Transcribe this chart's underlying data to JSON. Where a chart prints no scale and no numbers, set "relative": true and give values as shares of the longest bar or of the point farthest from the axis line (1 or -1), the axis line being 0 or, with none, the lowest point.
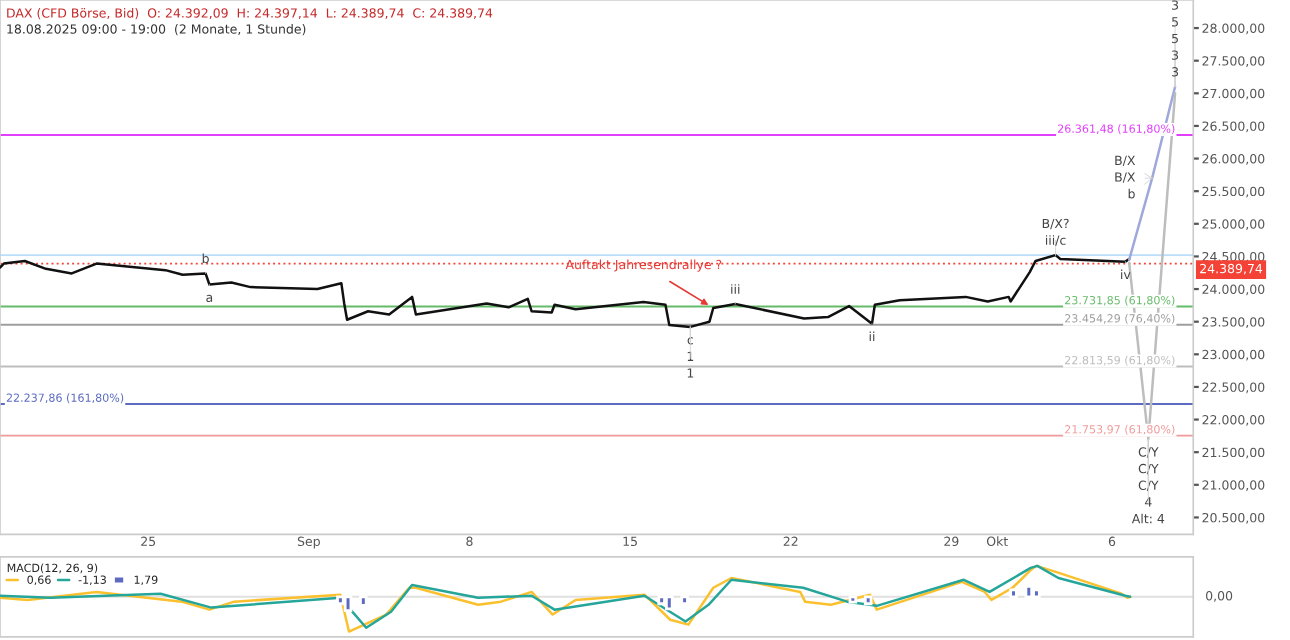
{
  "chart_data": [
    {
      "type": "line",
      "annotations": [
        "DAX (CFD Börse, Bid)  O: 24.392,09  H: 24.397,14  L: 24.389,74  C: 24.389,74",
        "18.08.2025 09:00 - 19:00  (2 Monate, 1 Stunde)",
        {
          "text": "Auftakt Jahresendrallye ?",
          "x": "2025-09-18T15:00",
          "y": 23710
        },
        {
          "text": "b",
          "x": "2025-08-27T12:00",
          "y": 24240
        },
        {
          "text": "a",
          "x": "2025-08-27T16:00",
          "y": 24070
        },
        {
          "text": "c",
          "x": "2025-09-17T15:00",
          "y": 23420
        },
        {
          "text": "1",
          "x": "2025-09-17T15:00",
          "y": 23420
        },
        {
          "text": "1",
          "x": "2025-09-17T15:00",
          "y": 23420
        },
        {
          "text": "iii",
          "x": "2025-09-19T14:00",
          "y": 23770
        },
        {
          "text": "ii",
          "x": "2025-09-25T13:00",
          "y": 23470
        },
        {
          "text": "B/X?",
          "x": "2025-10-03T13:00",
          "y": 24520
        },
        {
          "text": "iii/c",
          "x": "2025-10-03T13:00",
          "y": 24520
        },
        {
          "text": "iv",
          "x": "2025-10-06T14:00",
          "y": 24420
        },
        {
          "text": "B/X",
          "x": "2025-10-07T18:00",
          "y": 25700
        },
        {
          "text": "B/X",
          "x": "2025-10-07T18:00",
          "y": 25700
        },
        {
          "text": "b",
          "x": "2025-10-07T18:00",
          "y": 25700
        },
        {
          "text": "C/Y",
          "x": "2025-10-07T14:00",
          "y": 21700
        },
        {
          "text": "C/Y",
          "x": "2025-10-07T14:00",
          "y": 21700
        },
        {
          "text": "C/Y",
          "x": "2025-10-07T14:00",
          "y": 21700
        },
        {
          "text": "4",
          "x": "2025-10-07T14:00",
          "y": 21700
        },
        {
          "text": "Alt: 4",
          "x": "2025-10-07T14:00",
          "y": 21700
        },
        {
          "text": "3",
          "x": "2025-10-08T18:00",
          "y": 27100
        },
        {
          "text": "5",
          "x": "2025-10-08T18:00",
          "y": 27100
        },
        {
          "text": "5",
          "x": "2025-10-08T18:00",
          "y": 27100
        },
        {
          "text": "3",
          "x": "2025-10-08T18:00",
          "y": 27100
        },
        {
          "text": "3",
          "x": "2025-10-08T18:00",
          "y": 27100
        }
      ],
      "series": [
        {
          "color": "#111111",
          "x": [
            "2025-08-18T13:00",
            "2025-08-18T17:00",
            "2025-08-19T15:00",
            "2025-08-20T13:00",
            "2025-08-21T16:00",
            "2025-08-22T18:00",
            "2025-08-25T18:00",
            "2025-08-26T12:00",
            "2025-08-27T12:00",
            "2025-08-27T16:00",
            "2025-08-28T15:00",
            "2025-08-29T11:00",
            "2025-09-01T09:00",
            "2025-09-02T10:00",
            "2025-09-02T13:00",
            "2025-09-02T16:00",
            "2025-09-03T14:00",
            "2025-09-04T12:00",
            "2025-09-05T12:00",
            "2025-09-05T16:00",
            "2025-09-08T18:00",
            "2025-09-09T17:00",
            "2025-09-10T13:00",
            "2025-09-10T17:00",
            "2025-09-11T14:00",
            "2025-09-11T17:00",
            "2025-09-12T15:00",
            "2025-09-15T14:00",
            "2025-09-16T13:00",
            "2025-09-16T17:00",
            "2025-09-17T15:00",
            "2025-09-18T11:00",
            "2025-09-18T15:00",
            "2025-09-19T14:00",
            "2025-09-22T14:00",
            "2025-09-23T15:00",
            "2025-09-24T13:00",
            "2025-09-25T13:00",
            "2025-09-25T16:00",
            "2025-09-26T18:00",
            "2025-09-29T15:00",
            "2025-09-30T14:00",
            "2025-10-01T12:00",
            "2025-10-01T14:00",
            "2025-10-02T10:00",
            "2025-10-02T16:00",
            "2025-10-03T13:00",
            "2025-10-03T18:00",
            "2025-10-06T14:00",
            "2025-10-06T18:00"
          ],
          "values": [
            24330,
            24390,
            24430,
            24310,
            24240,
            24390,
            24290,
            24220,
            24240,
            24070,
            24100,
            24030,
            24000,
            24090,
            23780,
            23530,
            23660,
            23610,
            23880,
            23610,
            23780,
            23720,
            23850,
            23660,
            23640,
            23760,
            23690,
            23800,
            23760,
            23450,
            23420,
            23500,
            23710,
            23770,
            23550,
            23570,
            23740,
            23470,
            23760,
            23830,
            23880,
            23810,
            23880,
            23810,
            24260,
            24430,
            24520,
            24460,
            24420,
            24460
          ]
        },
        {
          "color": "#9fa8da",
          "x": [
            "2025-10-06T18:00",
            "2025-10-07T18:00",
            "2025-10-08T18:00"
          ],
          "values": [
            24450,
            25700,
            27100
          ]
        },
        {
          "color": "#bdbdbd",
          "x": [
            "2025-10-06T18:00",
            "2025-10-07T14:00",
            "2025-10-08T18:00"
          ],
          "values": [
            24400,
            21700,
            27000
          ]
        }
      ],
      "xlim": [
        "2025-08-18T13:00",
        "2025-10-09T13:00"
      ],
      "tick_labels": "y",
      "ylim": [
        20240,
        28430
      ],
      "yticks": [
        {
          "value": 20500,
          "label": "20.500,00"
        },
        {
          "value": 21000,
          "label": "21.000,00"
        },
        {
          "value": 21500,
          "label": "21.500,00"
        },
        {
          "value": 22000,
          "label": "22.000,00"
        },
        {
          "value": 22500,
          "label": "22.500,00"
        },
        {
          "value": 23000,
          "label": "23.000,00"
        },
        {
          "value": 23500,
          "label": "23.500,00"
        },
        {
          "value": 24000,
          "label": "24.000,00"
        },
        {
          "value": 24500,
          "label": "24.500,00"
        },
        {
          "value": 25000,
          "label": "25.000,00"
        },
        {
          "value": 25500,
          "label": "25.500,00"
        },
        {
          "value": 26000,
          "label": "26.000,00"
        },
        {
          "value": 26500,
          "label": "26.500,00"
        },
        {
          "value": 27000,
          "label": "27.000,00"
        },
        {
          "value": 27500,
          "label": "27.500,00"
        },
        {
          "value": 28000,
          "label": "28.000,00"
        }
      ],
      "ref_lines": [
        {
          "axis": "y",
          "value": 26361.48,
          "label": "26.361,48 (161,80%)",
          "color": "#e040fb"
        },
        {
          "axis": "y",
          "value": 24520,
          "label": null,
          "color": "#bbdefb"
        },
        {
          "axis": "y",
          "value": 24389.74,
          "label": "24.389,74",
          "color": "#f44336",
          "line_style": "dotted"
        },
        {
          "axis": "y",
          "value": 23731.85,
          "label": "23.731,85 (61,80%)",
          "color": "#66bb6a"
        },
        {
          "axis": "y",
          "value": 23454.29,
          "label": "23.454,29 (76,40%)",
          "color": "#9e9e9e"
        },
        {
          "axis": "y",
          "value": 22813.59,
          "label": "22.813,59 (61,80%)",
          "color": "#bdbdbd"
        },
        {
          "axis": "y",
          "value": 22237.86,
          "label": "22.237,86 (161,80%)",
          "color": "#5c6bc0"
        },
        {
          "axis": "y",
          "value": 21753.97,
          "label": "21.753,97 (61,80%)",
          "color": "#ef9a9a"
        }
      ]
    },
    {
      "type": "line",
      "relative": true,
      "legend_title": "MACD(12, 26, 9)",
      "legend": "top left",
      "tick_labels": "x",
      "xlim": [
        "2025-08-18T13:00",
        "2025-10-09T13:00"
      ],
      "xticks": [
        {
          "value": "2025-08-25",
          "label": "25"
        },
        {
          "value": "2025-09-01",
          "label": "Sep"
        },
        {
          "value": "2025-09-08",
          "label": "8"
        },
        {
          "value": "2025-09-15",
          "label": "15"
        },
        {
          "value": "2025-09-22",
          "label": "22"
        },
        {
          "value": "2025-09-29",
          "label": "29"
        },
        {
          "value": "2025-10-01",
          "label": "Okt"
        },
        {
          "value": "2025-10-06",
          "label": "6"
        }
      ],
      "ref_lines": [
        {
          "axis": "y",
          "value": 0,
          "label": "0,00",
          "color": "#e0e0e0"
        }
      ],
      "series": [
        {
          "name": "0,66",
          "color": "#fbc02d",
          "x": [
            "2025-08-18T13:00",
            "2025-08-19T18:00",
            "2025-08-22T18:00",
            "2025-08-26T11:00",
            "2025-08-27T16:00",
            "2025-08-28T18:00",
            "2025-09-02T09:00",
            "2025-09-02T18:00",
            "2025-09-04T09:00",
            "2025-09-05T09:00",
            "2025-09-05T16:00",
            "2025-09-08T09:00",
            "2025-09-09T09:00",
            "2025-09-10T17:00",
            "2025-09-11T15:00",
            "2025-09-12T15:00",
            "2025-09-15T15:00",
            "2025-09-16T18:00",
            "2025-09-17T13:00",
            "2025-09-18T15:00",
            "2025-09-19T10:00",
            "2025-09-22T10:00",
            "2025-09-22T15:00",
            "2025-09-23T18:00",
            "2025-09-25T11:00",
            "2025-09-25T18:00",
            "2025-09-29T11:00",
            "2025-09-30T11:00",
            "2025-09-30T18:00",
            "2025-10-01T16:00",
            "2025-10-02T11:00",
            "2025-10-02T17:00",
            "2025-10-03T14:00",
            "2025-10-06T10:00",
            "2025-10-06T16:00",
            "2025-10-06T19:00"
          ],
          "values": [
            -0.03,
            -0.09,
            0.14,
            -0.14,
            -0.37,
            -0.14,
            0.06,
            -1,
            -0.51,
            0.26,
            0.26,
            -0.23,
            -0.14,
            0.14,
            -0.51,
            -0.09,
            0.06,
            -0.66,
            -0.8,
            0.26,
            0.54,
            0.14,
            -0.14,
            -0.23,
            0.06,
            -0.37,
            0.43,
            0.14,
            -0.09,
            0.26,
            0.77,
            0.89,
            0.71,
            0.09,
            -0.03,
            0
          ]
        },
        {
          "name": "-1,13",
          "color": "#26a69a",
          "x": [
            "2025-08-18T13:00",
            "2025-08-20T18:00",
            "2025-08-25T13:00",
            "2025-08-27T18:00",
            "2025-09-02T09:00",
            "2025-09-03T12:00",
            "2025-09-04T14:00",
            "2025-09-05T12:00",
            "2025-09-08T09:00",
            "2025-09-10T17:00",
            "2025-09-11T17:00",
            "2025-09-15T15:00",
            "2025-09-17T10:00",
            "2025-09-18T10:00",
            "2025-09-19T10:00",
            "2025-09-22T13:00",
            "2025-09-24T11:00",
            "2025-09-25T18:00",
            "2025-09-29T13:00",
            "2025-09-30T16:00",
            "2025-10-02T11:00",
            "2025-10-02T18:00",
            "2025-10-03T16:00",
            "2025-10-06T14:00",
            "2025-10-06T19:00"
          ],
          "values": [
            0.03,
            -0.03,
            0.09,
            -0.31,
            -0.03,
            -0.89,
            -0.43,
            0.34,
            -0.03,
            0.03,
            -0.37,
            0.03,
            -0.71,
            -0.23,
            0.49,
            0.26,
            -0.14,
            -0.26,
            0.49,
            0.14,
            0.83,
            0.89,
            0.54,
            0.03,
            0
          ]
        },
        {
          "name": "1,79",
          "type": "bar",
          "color": "#5c6bc0",
          "x": [
            "2025-09-02T09:00",
            "2025-09-02T17:00",
            "2025-09-03T09:00",
            "2025-09-16T09:00",
            "2025-09-16T17:00",
            "2025-09-17T09:00",
            "2025-09-24T17:00",
            "2025-09-25T09:00",
            "2025-10-01T17:00",
            "2025-10-02T09:00",
            "2025-10-02T17:00"
          ],
          "values": [
            -0.2,
            -0.4,
            -0.25,
            -0.2,
            -0.35,
            -0.2,
            -0.15,
            -0.2,
            0.2,
            0.3,
            0.2
          ]
        }
      ]
    }
  ]
}
